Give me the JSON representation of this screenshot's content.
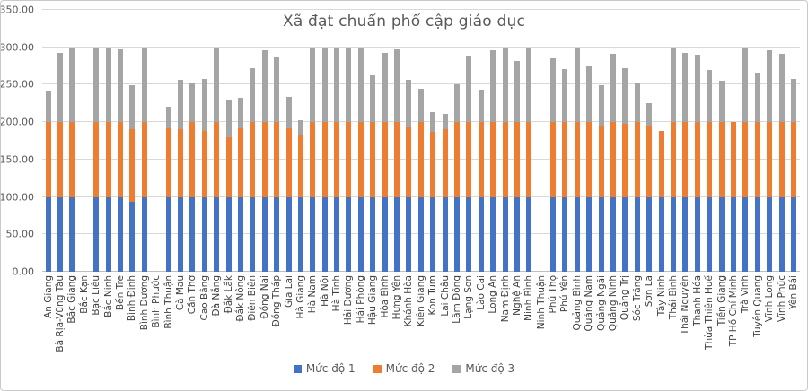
{
  "chart_data": {
    "type": "bar",
    "subtype": "stacked-column",
    "title": "Xã đạt chuẩn phổ cập giáo dục",
    "xlabel": "",
    "ylabel": "",
    "ylim": [
      0,
      350
    ],
    "y_tick_step": 50,
    "y_tick_labels": [
      "0.00",
      "50.00",
      "100.00",
      "150.00",
      "200.00",
      "250.00",
      "300.00",
      "350.00"
    ],
    "grid": true,
    "legend_position": "bottom",
    "x_label_rotation": 90,
    "legend": [
      {
        "name": "Mức độ 1",
        "color": "#4472C4"
      },
      {
        "name": "Mức độ 2",
        "color": "#ED7D31"
      },
      {
        "name": "Mức độ 3",
        "color": "#A5A5A5"
      }
    ],
    "categories": [
      "An Giang",
      "Bà Rịa-Vũng Tàu",
      "Bắc Giang",
      "Bắc Kạn",
      "Bạc Liêu",
      "Bắc Ninh",
      "Bến Tre",
      "Bình Định",
      "Bình Dương",
      "Bình Phước",
      "Bình Thuận",
      "Cà Mau",
      "Cần Thơ",
      "Cao Bằng",
      "Đà Nẵng",
      "Đắk Lắk",
      "Đắk Nông",
      "Điện Biên",
      "Đồng Nai",
      "Đồng Tháp",
      "Gia Lai",
      "Hà Giang",
      "Hà Nam",
      "Hà Nội",
      "Hà Tĩnh",
      "Hải Dương",
      "Hải Phòng",
      "Hậu Giang",
      "Hòa Bình",
      "Hưng Yên",
      "Khánh Hòa",
      "Kiên Giang",
      "Kon Tum",
      "Lai Châu",
      "Lâm Đồng",
      "Lạng Sơn",
      "Lào Cai",
      "Long An",
      "Nam Định",
      "Nghệ An",
      "Ninh Bình",
      "Ninh Thuận",
      "Phú Thọ",
      "Phú Yên",
      "Quảng Bình",
      "Quảng Nam",
      "Quảng Ngãi",
      "Quảng Ninh",
      "Quảng Trị",
      "Sóc Trăng",
      "Sơn La",
      "Tây Ninh",
      "Thái Bình",
      "Thái Nguyên",
      "Thanh Hóa",
      "Thừa Thiên Huế",
      "Tiền Giang",
      "TP Hồ Chí Minh",
      "Trà Vinh",
      "Tuyên Quang",
      "Vĩnh Long",
      "Vĩnh Phúc",
      "Yên Bái"
    ],
    "series": [
      {
        "name": "Mức độ 1",
        "color": "#4472C4",
        "values": [
          100,
          100,
          100,
          0,
          100,
          100,
          100,
          93,
          100,
          0,
          100,
          100,
          100,
          100,
          100,
          100,
          100,
          100,
          100,
          100,
          100,
          100,
          100,
          100,
          100,
          100,
          100,
          100,
          100,
          100,
          100,
          100,
          100,
          100,
          100,
          100,
          100,
          100,
          100,
          100,
          100,
          0,
          100,
          100,
          100,
          100,
          100,
          100,
          100,
          100,
          100,
          100,
          100,
          100,
          100,
          100,
          100,
          100,
          100,
          100,
          100,
          100,
          100
        ]
      },
      {
        "name": "Mức độ 2",
        "color": "#ED7D31",
        "values": [
          100,
          100,
          100,
          0,
          100,
          100,
          100,
          98,
          100,
          0,
          92,
          91,
          100,
          88,
          100,
          80,
          92,
          100,
          100,
          100,
          92,
          84,
          100,
          100,
          100,
          100,
          100,
          100,
          100,
          100,
          93,
          100,
          87,
          91,
          100,
          100,
          100,
          100,
          100,
          100,
          100,
          0,
          100,
          100,
          100,
          100,
          94,
          100,
          98,
          100,
          95,
          88,
          100,
          100,
          100,
          100,
          100,
          100,
          100,
          100,
          100,
          100,
          100
        ]
      },
      {
        "name": "Mức độ 3",
        "color": "#A5A5A5",
        "values": [
          42,
          93,
          100,
          0,
          100,
          100,
          97,
          58,
          100,
          0,
          28,
          66,
          53,
          70,
          100,
          50,
          41,
          72,
          96,
          86,
          42,
          18,
          98,
          100,
          100,
          100,
          100,
          63,
          93,
          97,
          64,
          45,
          26,
          20,
          50,
          88,
          43,
          96,
          98,
          82,
          98,
          0,
          85,
          71,
          100,
          74,
          55,
          91,
          74,
          53,
          30,
          0,
          100,
          93,
          90,
          70,
          55,
          0,
          98,
          66,
          96,
          91,
          58
        ]
      }
    ],
    "colors": {
      "gridline": "#d9d9d9",
      "axis_line": "#bfbfbf",
      "title_text": "#595959",
      "tick_text": "#595959",
      "category_text": "#404040"
    }
  }
}
